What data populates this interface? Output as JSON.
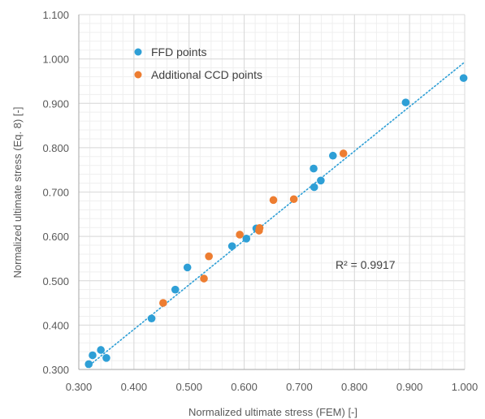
{
  "chart_data": {
    "type": "scatter",
    "title": "",
    "xlabel": "Normalized ultimate stress (FEM) [-]",
    "ylabel": "Normalized ultimate stress (Eq. 8) [-]",
    "xlim": [
      0.3,
      1.0
    ],
    "ylim": [
      0.3,
      1.1
    ],
    "x_ticks": [
      "0.300",
      "0.400",
      "0.500",
      "0.600",
      "0.700",
      "0.800",
      "0.900",
      "1.000"
    ],
    "y_ticks": [
      "0.300",
      "0.400",
      "0.500",
      "0.600",
      "0.700",
      "0.800",
      "0.900",
      "1.000",
      "1.100"
    ],
    "grid": true,
    "legend_position": "top-left",
    "series": [
      {
        "name": "FFD points",
        "color": "#2e9fd6",
        "points": [
          {
            "x": 0.318,
            "y": 0.312
          },
          {
            "x": 0.325,
            "y": 0.332
          },
          {
            "x": 0.34,
            "y": 0.344
          },
          {
            "x": 0.35,
            "y": 0.326
          },
          {
            "x": 0.432,
            "y": 0.415
          },
          {
            "x": 0.475,
            "y": 0.48
          },
          {
            "x": 0.497,
            "y": 0.53
          },
          {
            "x": 0.578,
            "y": 0.578
          },
          {
            "x": 0.604,
            "y": 0.595
          },
          {
            "x": 0.622,
            "y": 0.618
          },
          {
            "x": 0.726,
            "y": 0.753
          },
          {
            "x": 0.727,
            "y": 0.711
          },
          {
            "x": 0.739,
            "y": 0.726
          },
          {
            "x": 0.761,
            "y": 0.782
          },
          {
            "x": 0.893,
            "y": 0.902
          },
          {
            "x": 0.998,
            "y": 0.957
          }
        ]
      },
      {
        "name": "Additional CCD points",
        "color": "#ed7d31",
        "points": [
          {
            "x": 0.453,
            "y": 0.45
          },
          {
            "x": 0.527,
            "y": 0.505
          },
          {
            "x": 0.536,
            "y": 0.555
          },
          {
            "x": 0.592,
            "y": 0.604
          },
          {
            "x": 0.627,
            "y": 0.613
          },
          {
            "x": 0.628,
            "y": 0.619
          },
          {
            "x": 0.653,
            "y": 0.682
          },
          {
            "x": 0.69,
            "y": 0.684
          },
          {
            "x": 0.78,
            "y": 0.787
          }
        ]
      }
    ],
    "trendline": {
      "style": "dotted",
      "color": "#2e9fd6",
      "from": {
        "x": 0.315,
        "y": 0.305
      },
      "to": {
        "x": 1.0,
        "y": 0.993
      }
    },
    "annotation": "R² = 0.9917",
    "colors": {
      "grid_major": "#d9d9d9",
      "grid_minor": "#efefef",
      "axis": "#a6a6a6",
      "text": "#595959"
    }
  }
}
